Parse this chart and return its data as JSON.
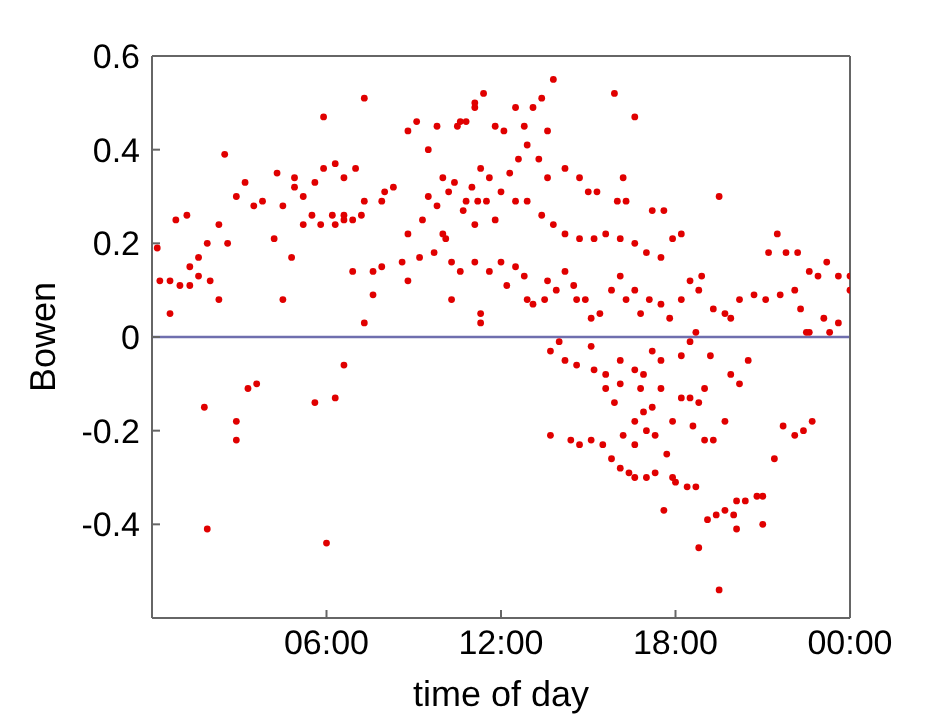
{
  "chart_data": {
    "type": "scatter",
    "xlabel": "time of day",
    "ylabel": "Bowen",
    "xlim": [
      0,
      24
    ],
    "xticks": [
      {
        "value": 6,
        "label": "06:00"
      },
      {
        "value": 12,
        "label": "12:00"
      },
      {
        "value": 18,
        "label": "18:00"
      },
      {
        "value": 24,
        "label": "00:00"
      }
    ],
    "ylim": [
      -0.6,
      0.6
    ],
    "yticks": [
      -0.4,
      -0.2,
      0,
      0.2,
      0.4,
      0.6
    ],
    "grid": false,
    "marker": "circle",
    "ref_lines": [
      {
        "axis": "y",
        "value": 0,
        "color": "#6f6fae"
      }
    ],
    "series": [
      {
        "color": "#e00000",
        "x": [
          0.18,
          0.27,
          0.62,
          0.62,
          0.82,
          0.96,
          1.2,
          1.3,
          1.3,
          1.6,
          1.6,
          1.9,
          2.0,
          2.3,
          2.3,
          2.5,
          2.6,
          2.9,
          3.2,
          3.5,
          3.8,
          4.2,
          4.3,
          4.5,
          4.5,
          4.8,
          4.9,
          4.9,
          5.2,
          5.2,
          5.5,
          5.6,
          5.9,
          5.8,
          5.9,
          6.2,
          6.3,
          6.3,
          6.6,
          6.6,
          6.6,
          6.9,
          6.9,
          7.0,
          7.2,
          7.3,
          7.3,
          7.3,
          7.6,
          7.6,
          7.9,
          7.9,
          8.0,
          8.3,
          8.6,
          8.8,
          8.8,
          8.8,
          9.1,
          9.2,
          9.5,
          9.7,
          9.8,
          10.0,
          10.1,
          10.3,
          10.3,
          10.5,
          10.6,
          10.8,
          10.8,
          11.1,
          11.2,
          10.6,
          11.1,
          11.4,
          11.8,
          12.1,
          12.5,
          12.8,
          13.1,
          13.4,
          13.8,
          13.6,
          13.3,
          12.9,
          13.6,
          14.2,
          14.7,
          15.0,
          15.3,
          15.9,
          16.2,
          16.6,
          16.0,
          16.3,
          17.2,
          17.6,
          19.5,
          21.5,
          21.2,
          21.8,
          22.2,
          22.6,
          23.2,
          23.6,
          24.0,
          24.0,
          22.9,
          11.1,
          11.5,
          12.0,
          12.5,
          12.9,
          13.4,
          13.8,
          14.2,
          14.7,
          15.2,
          15.6,
          16.1,
          16.6,
          17.0,
          17.5,
          17.9,
          18.2,
          11.1,
          11.6,
          12.0,
          12.2,
          12.5,
          12.8,
          12.9,
          13.1,
          13.5,
          13.6,
          13.9,
          14.2,
          14.5,
          14.6,
          14.9,
          15.1,
          15.4,
          15.8,
          16.1,
          16.3,
          16.6,
          16.8,
          17.1,
          17.5,
          17.8,
          18.2,
          18.5,
          18.9,
          18.8,
          19.3,
          19.7,
          19.9,
          20.2,
          20.7,
          21.1,
          21.6,
          22.1,
          22.3,
          22.5,
          22.6,
          23.1,
          23.3,
          23.6,
          11.3,
          11.3,
          18.7,
          13.7,
          14.0,
          14.2,
          14.6,
          15.1,
          15.2,
          15.6,
          16.1,
          16.6,
          16.9,
          17.2,
          17.5,
          18.2,
          18.5,
          19.2,
          19.9,
          20.5,
          20.2,
          19.0,
          17.5,
          16.1,
          15.6,
          16.8,
          15.9,
          16.6,
          16.9,
          17.2,
          17.9,
          18.2,
          18.5,
          18.8,
          18.6,
          19.7,
          13.7,
          14.4,
          14.7,
          15.1,
          15.5,
          15.8,
          16.1,
          16.4,
          16.6,
          17.0,
          17.3,
          16.2,
          16.6,
          17.0,
          17.3,
          17.7,
          17.9,
          18.0,
          18.4,
          18.7,
          17.6,
          19.0,
          19.3,
          19.1,
          19.4,
          19.7,
          20.0,
          20.1,
          20.1,
          20.4,
          20.8,
          21.0,
          21.0,
          18.8,
          19.5,
          21.4,
          21.7,
          22.1,
          22.4,
          22.7,
          1.8,
          1.9,
          2.9,
          2.9,
          3.3,
          3.6,
          5.6,
          6.0,
          6.3,
          6.6,
          9.5,
          9.8,
          10.2,
          10.4,
          10.7,
          11.0,
          11.3,
          11.6,
          9.3,
          10.0,
          11.8,
          12.3,
          12.6
        ],
        "values": [
          0.19,
          0.12,
          0.12,
          0.05,
          0.25,
          0.11,
          0.26,
          0.11,
          0.15,
          0.17,
          0.13,
          0.2,
          0.12,
          0.24,
          0.08,
          0.39,
          0.2,
          0.3,
          0.33,
          0.28,
          0.29,
          0.21,
          0.35,
          0.08,
          0.28,
          0.17,
          0.32,
          0.34,
          0.24,
          0.3,
          0.26,
          0.33,
          0.47,
          0.24,
          0.36,
          0.26,
          0.37,
          0.24,
          0.26,
          0.34,
          0.25,
          0.25,
          0.14,
          0.36,
          0.26,
          0.51,
          0.03,
          0.29,
          0.14,
          0.09,
          0.29,
          0.15,
          0.31,
          0.32,
          0.16,
          0.12,
          0.22,
          0.44,
          0.46,
          0.17,
          0.4,
          0.18,
          0.45,
          0.34,
          0.21,
          0.08,
          0.16,
          0.45,
          0.14,
          0.46,
          0.29,
          0.49,
          0.29,
          0.46,
          0.5,
          0.52,
          0.45,
          0.44,
          0.49,
          0.45,
          0.49,
          0.51,
          0.55,
          0.44,
          0.38,
          0.41,
          0.34,
          0.36,
          0.34,
          0.31,
          0.31,
          0.52,
          0.34,
          0.47,
          0.29,
          0.29,
          0.27,
          0.27,
          0.3,
          0.22,
          0.18,
          0.18,
          0.18,
          0.14,
          0.16,
          0.13,
          0.13,
          0.1,
          0.13,
          0.24,
          0.29,
          0.31,
          0.29,
          0.29,
          0.26,
          0.24,
          0.22,
          0.21,
          0.21,
          0.22,
          0.21,
          0.2,
          0.18,
          0.17,
          0.21,
          0.22,
          0.16,
          0.14,
          0.16,
          0.11,
          0.15,
          0.13,
          0.08,
          0.07,
          0.08,
          0.12,
          0.1,
          0.14,
          0.11,
          0.08,
          0.08,
          0.04,
          0.05,
          0.1,
          0.13,
          0.08,
          0.1,
          0.05,
          0.08,
          0.07,
          0.04,
          0.08,
          0.12,
          0.13,
          0.1,
          0.06,
          0.05,
          0.04,
          0.08,
          0.09,
          0.08,
          0.09,
          0.1,
          0.06,
          0.01,
          0.01,
          0.04,
          0.01,
          0.03,
          0.05,
          0.03,
          0.01,
          -0.03,
          -0.01,
          -0.05,
          -0.06,
          -0.02,
          -0.07,
          -0.08,
          -0.05,
          -0.07,
          -0.08,
          -0.03,
          -0.05,
          -0.04,
          -0.01,
          -0.04,
          -0.08,
          -0.05,
          -0.1,
          -0.11,
          -0.11,
          -0.1,
          -0.11,
          -0.11,
          -0.14,
          -0.18,
          -0.16,
          -0.15,
          -0.18,
          -0.13,
          -0.13,
          -0.14,
          -0.19,
          -0.18,
          -0.21,
          -0.22,
          -0.23,
          -0.22,
          -0.23,
          -0.26,
          -0.28,
          -0.29,
          -0.3,
          -0.3,
          -0.29,
          -0.21,
          -0.23,
          -0.2,
          -0.21,
          -0.25,
          -0.3,
          -0.31,
          -0.32,
          -0.32,
          -0.37,
          -0.22,
          -0.22,
          -0.39,
          -0.38,
          -0.37,
          -0.38,
          -0.41,
          -0.35,
          -0.35,
          -0.34,
          -0.34,
          -0.4,
          -0.45,
          -0.54,
          -0.26,
          -0.19,
          -0.21,
          -0.2,
          -0.18,
          -0.15,
          -0.41,
          -0.18,
          -0.22,
          -0.11,
          -0.1,
          -0.14,
          -0.44,
          -0.13,
          -0.06,
          0.3,
          0.28,
          0.31,
          0.33,
          0.27,
          0.32,
          0.36,
          0.34,
          0.25,
          0.22,
          0.25,
          0.35,
          0.38
        ]
      }
    ]
  }
}
